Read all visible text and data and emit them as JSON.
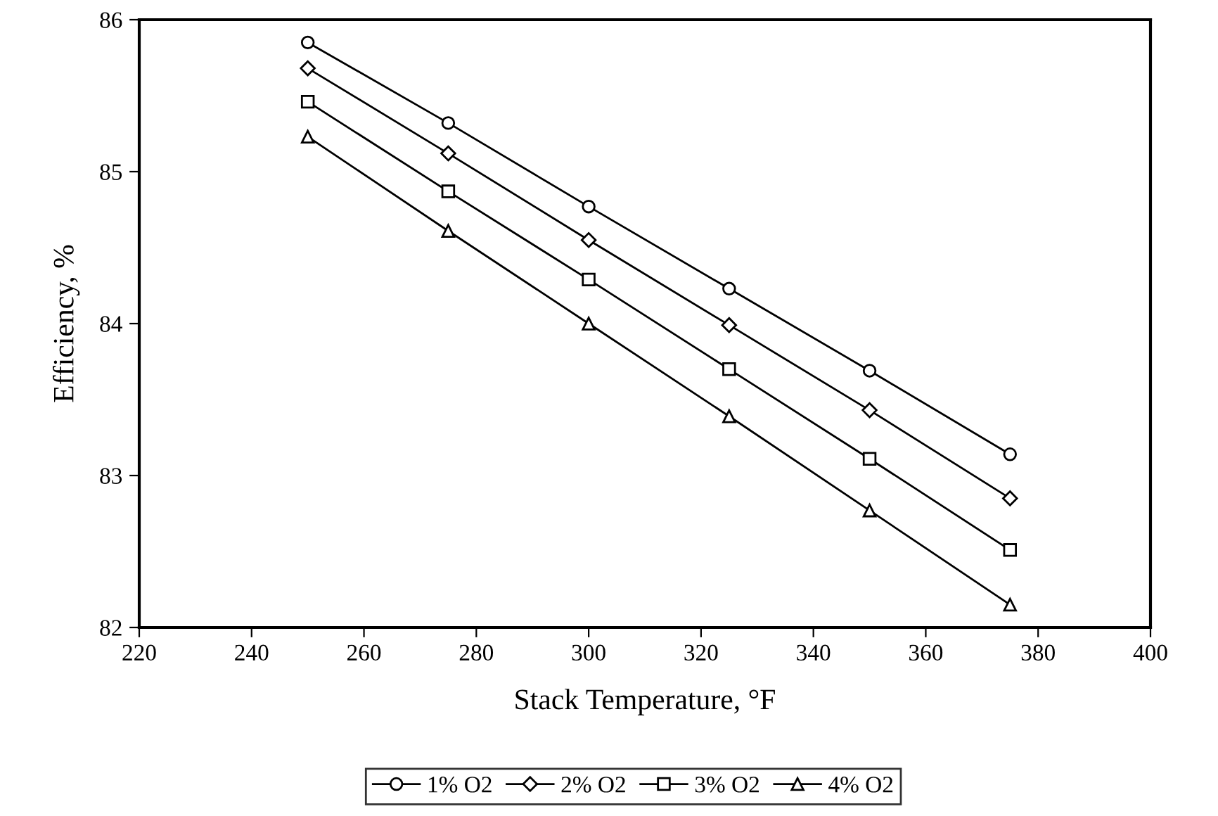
{
  "chart_data": {
    "type": "line",
    "xlabel": "Stack Temperature, °F",
    "ylabel": "Efficiency, %",
    "x": [
      250,
      275,
      300,
      325,
      350,
      375
    ],
    "series": [
      {
        "name": "1% O2",
        "color": "#000000",
        "marker": "circle",
        "values": [
          85.85,
          85.32,
          84.77,
          84.23,
          83.69,
          83.14
        ]
      },
      {
        "name": "2% O2",
        "color": "#000000",
        "marker": "diamond",
        "values": [
          85.68,
          85.12,
          84.55,
          83.99,
          83.43,
          82.85
        ]
      },
      {
        "name": "3% O2",
        "color": "#000000",
        "marker": "square",
        "values": [
          85.46,
          84.87,
          84.29,
          83.7,
          83.11,
          82.51
        ]
      },
      {
        "name": "4% O2",
        "color": "#000000",
        "marker": "triangle",
        "values": [
          85.23,
          84.61,
          84.0,
          83.39,
          82.77,
          82.15
        ]
      }
    ],
    "xlim": [
      220,
      400
    ],
    "xticks": [
      220,
      240,
      260,
      280,
      300,
      320,
      340,
      360,
      380,
      400
    ],
    "ylim": [
      82,
      86
    ],
    "yticks": [
      82,
      83,
      84,
      85,
      86
    ],
    "grid": false,
    "legend": "bottom",
    "line_style": "solid"
  }
}
